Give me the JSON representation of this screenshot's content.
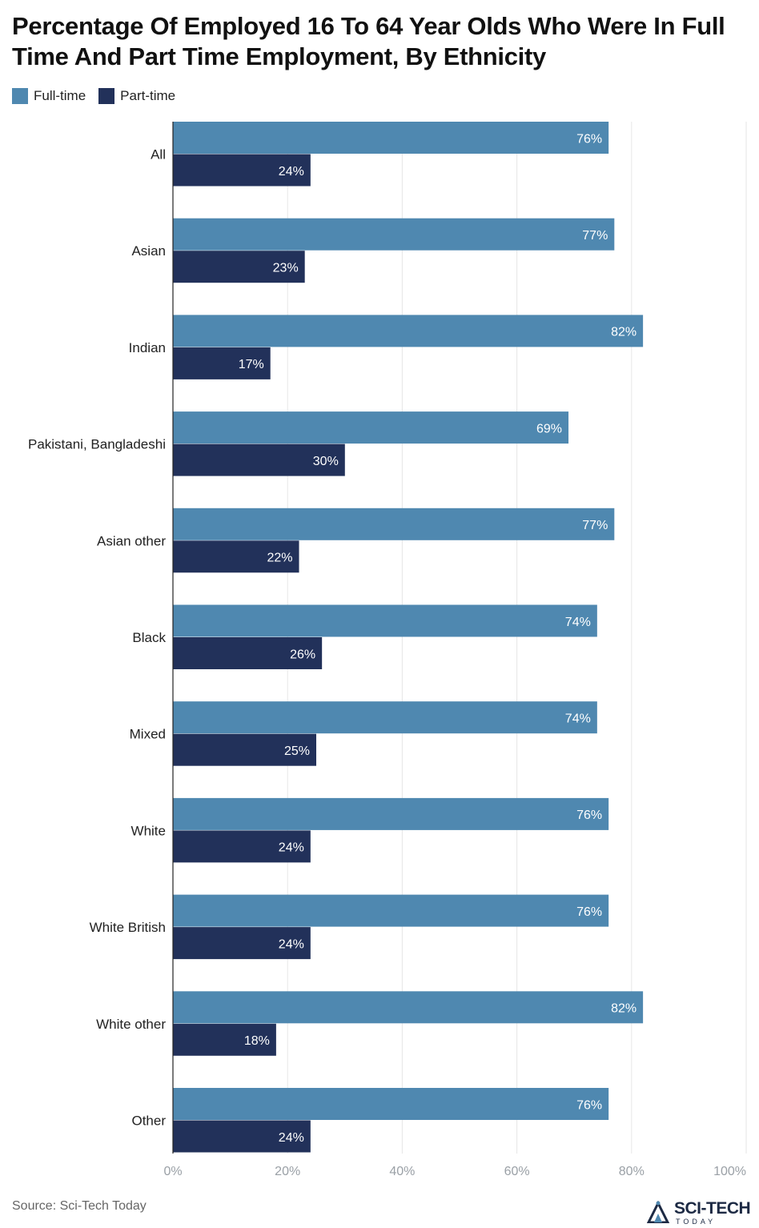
{
  "title": "Percentage Of Employed 16 To 64 Year Olds Who Were In Full Time And Part Time Employment, By Ethnicity",
  "source": "Source: Sci-Tech Today",
  "logo": {
    "name": "SCI-TECH",
    "sub": "TODAY"
  },
  "colors": {
    "full_time": "#4f88b0",
    "part_time": "#22315a",
    "grid": "#e6e6e6",
    "axis": "#222222",
    "tick_label": "#9aa0a6"
  },
  "legend": [
    {
      "label": "Full-time",
      "color": "#4f88b0"
    },
    {
      "label": "Part-time",
      "color": "#22315a"
    }
  ],
  "chart_data": {
    "type": "bar",
    "orientation": "horizontal",
    "categories": [
      "All",
      "Asian",
      "Indian",
      "Pakistani, Bangladeshi",
      "Asian other",
      "Black",
      "Mixed",
      "White",
      "White British",
      "White other",
      "Other"
    ],
    "series": [
      {
        "name": "Full-time",
        "values": [
          76,
          77,
          82,
          69,
          77,
          74,
          74,
          76,
          76,
          82,
          76
        ]
      },
      {
        "name": "Part-time",
        "values": [
          24,
          23,
          17,
          30,
          22,
          26,
          25,
          24,
          24,
          18,
          24
        ]
      }
    ],
    "data_labels": {
      "Full-time": [
        "76%",
        "77%",
        "82%",
        "69%",
        "77%",
        "74%",
        "74%",
        "76%",
        "76%",
        "82%",
        "76%"
      ],
      "Part-time": [
        "24%",
        "23%",
        "17%",
        "30%",
        "22%",
        "26%",
        "25%",
        "24%",
        "24%",
        "18%",
        "24%"
      ]
    },
    "xlim": [
      0,
      100
    ],
    "x_ticks": [
      0,
      20,
      40,
      60,
      80,
      100
    ],
    "x_tick_labels": [
      "0%",
      "20%",
      "40%",
      "60%",
      "80%",
      "100%"
    ],
    "grid": true,
    "legend_position": "top-left",
    "title": "Percentage Of Employed 16 To 64 Year Olds Who Were In Full Time And Part Time Employment, By Ethnicity",
    "xlabel": "",
    "ylabel": ""
  }
}
